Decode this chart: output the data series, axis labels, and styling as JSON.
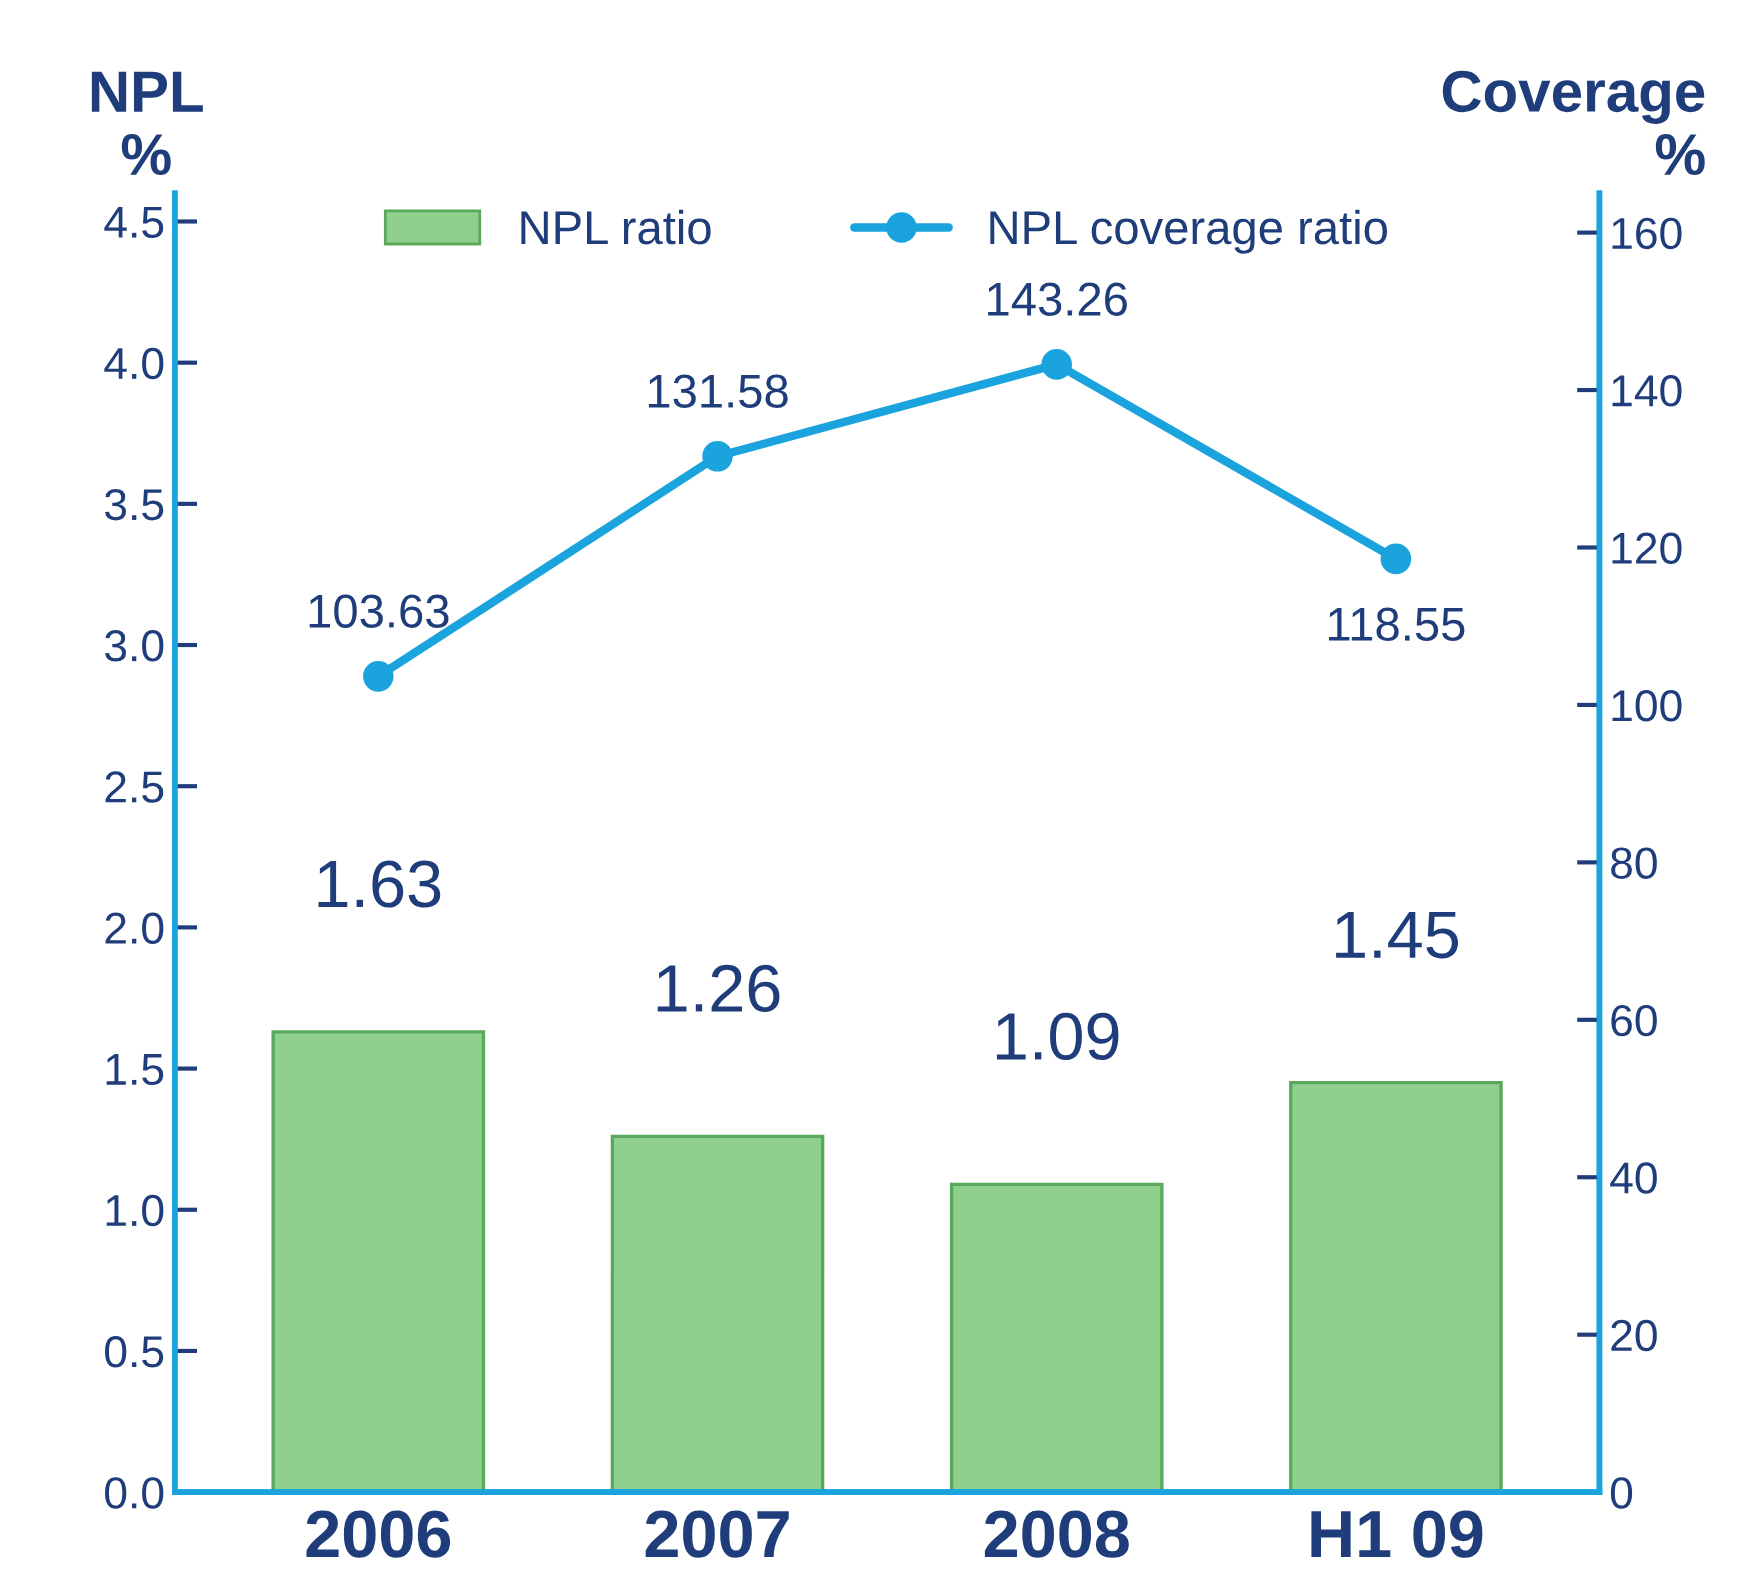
{
  "chart_data": {
    "type": "bar",
    "categories": [
      "2006",
      "2007",
      "2008",
      "H1 09"
    ],
    "ylabel": "NPL\n%",
    "y2label": "Coverage\n%",
    "ylim": [
      0,
      4.6
    ],
    "yticks": [
      {
        "value": 0,
        "label": "0.0"
      },
      0.5,
      {
        "value": 1,
        "label": "1.0"
      },
      1.5,
      {
        "value": 2,
        "label": "2.0"
      },
      2.5,
      {
        "value": 3,
        "label": "3.0"
      },
      3.5,
      {
        "value": 4,
        "label": "4.0"
      },
      4.5
    ],
    "y2lim": [
      0,
      165
    ],
    "y2ticks": [
      0,
      20,
      40,
      60,
      80,
      100,
      120,
      140,
      160
    ],
    "series": [
      {
        "name": "NPL ratio",
        "color": "#8fd08f",
        "values": [
          1.63,
          1.26,
          1.09,
          1.45
        ]
      },
      {
        "name": "NPL coverage ratio",
        "type": "line",
        "axis": "y2",
        "color": "#1aa3dd",
        "marker": "circle",
        "values": [
          103.63,
          131.58,
          143.26,
          118.55
        ]
      }
    ],
    "data_labels": true,
    "grid": false,
    "legend": "top"
  }
}
